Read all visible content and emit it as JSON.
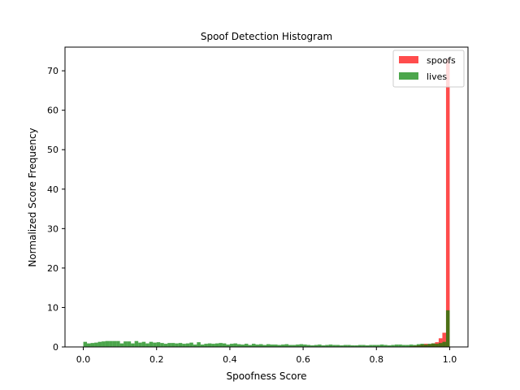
{
  "chart_data": {
    "type": "bar",
    "title": "Spoof Detection Histogram",
    "xlabel": "Spoofness Score",
    "ylabel": "Normalized Score Frequency",
    "xlim": [
      -0.05,
      1.05
    ],
    "ylim": [
      0,
      76
    ],
    "xticks": [
      "0.0",
      "0.2",
      "0.4",
      "0.6",
      "0.8",
      "1.0"
    ],
    "yticks": [
      "0",
      "10",
      "20",
      "30",
      "40",
      "50",
      "60",
      "70"
    ],
    "grid": false,
    "legend_position": "top-right",
    "bin_width": 0.01,
    "series": [
      {
        "name": "spoofs",
        "color": "#ff0000",
        "alpha": 0.7,
        "bins": [
          {
            "x": 0.89,
            "y": 0.2
          },
          {
            "x": 0.9,
            "y": 0.3
          },
          {
            "x": 0.91,
            "y": 0.4
          },
          {
            "x": 0.92,
            "y": 0.6
          },
          {
            "x": 0.93,
            "y": 0.8
          },
          {
            "x": 0.94,
            "y": 0.7
          },
          {
            "x": 0.95,
            "y": 0.9
          },
          {
            "x": 0.96,
            "y": 1.2
          },
          {
            "x": 0.97,
            "y": 2.2
          },
          {
            "x": 0.98,
            "y": 3.6
          },
          {
            "x": 0.99,
            "y": 73.0
          }
        ]
      },
      {
        "name": "lives",
        "color": "#008000",
        "alpha": 0.7,
        "bins": [
          {
            "x": 0.0,
            "y": 1.3
          },
          {
            "x": 0.01,
            "y": 0.9
          },
          {
            "x": 0.02,
            "y": 1.0
          },
          {
            "x": 0.03,
            "y": 1.1
          },
          {
            "x": 0.04,
            "y": 1.3
          },
          {
            "x": 0.05,
            "y": 1.4
          },
          {
            "x": 0.06,
            "y": 1.5
          },
          {
            "x": 0.07,
            "y": 1.5
          },
          {
            "x": 0.08,
            "y": 1.5
          },
          {
            "x": 0.09,
            "y": 1.5
          },
          {
            "x": 0.1,
            "y": 0.9
          },
          {
            "x": 0.11,
            "y": 1.4
          },
          {
            "x": 0.12,
            "y": 1.4
          },
          {
            "x": 0.13,
            "y": 0.9
          },
          {
            "x": 0.14,
            "y": 1.5
          },
          {
            "x": 0.15,
            "y": 1.1
          },
          {
            "x": 0.16,
            "y": 1.3
          },
          {
            "x": 0.17,
            "y": 0.9
          },
          {
            "x": 0.18,
            "y": 1.3
          },
          {
            "x": 0.19,
            "y": 1.1
          },
          {
            "x": 0.2,
            "y": 1.2
          },
          {
            "x": 0.21,
            "y": 1.0
          },
          {
            "x": 0.22,
            "y": 0.8
          },
          {
            "x": 0.23,
            "y": 1.0
          },
          {
            "x": 0.24,
            "y": 1.0
          },
          {
            "x": 0.25,
            "y": 0.9
          },
          {
            "x": 0.26,
            "y": 1.0
          },
          {
            "x": 0.27,
            "y": 0.8
          },
          {
            "x": 0.28,
            "y": 0.9
          },
          {
            "x": 0.29,
            "y": 1.1
          },
          {
            "x": 0.3,
            "y": 0.6
          },
          {
            "x": 0.31,
            "y": 1.2
          },
          {
            "x": 0.32,
            "y": 0.6
          },
          {
            "x": 0.33,
            "y": 0.8
          },
          {
            "x": 0.34,
            "y": 0.9
          },
          {
            "x": 0.35,
            "y": 0.8
          },
          {
            "x": 0.36,
            "y": 0.9
          },
          {
            "x": 0.37,
            "y": 1.0
          },
          {
            "x": 0.38,
            "y": 0.9
          },
          {
            "x": 0.39,
            "y": 0.6
          },
          {
            "x": 0.4,
            "y": 0.8
          },
          {
            "x": 0.41,
            "y": 0.9
          },
          {
            "x": 0.42,
            "y": 0.7
          },
          {
            "x": 0.43,
            "y": 0.6
          },
          {
            "x": 0.44,
            "y": 0.8
          },
          {
            "x": 0.45,
            "y": 0.5
          },
          {
            "x": 0.46,
            "y": 0.8
          },
          {
            "x": 0.47,
            "y": 0.6
          },
          {
            "x": 0.48,
            "y": 0.7
          },
          {
            "x": 0.49,
            "y": 0.5
          },
          {
            "x": 0.5,
            "y": 0.7
          },
          {
            "x": 0.51,
            "y": 0.6
          },
          {
            "x": 0.52,
            "y": 0.6
          },
          {
            "x": 0.53,
            "y": 0.5
          },
          {
            "x": 0.54,
            "y": 0.6
          },
          {
            "x": 0.55,
            "y": 0.7
          },
          {
            "x": 0.56,
            "y": 0.5
          },
          {
            "x": 0.57,
            "y": 0.5
          },
          {
            "x": 0.58,
            "y": 0.6
          },
          {
            "x": 0.59,
            "y": 0.7
          },
          {
            "x": 0.6,
            "y": 0.6
          },
          {
            "x": 0.61,
            "y": 0.5
          },
          {
            "x": 0.62,
            "y": 0.4
          },
          {
            "x": 0.63,
            "y": 0.5
          },
          {
            "x": 0.64,
            "y": 0.6
          },
          {
            "x": 0.65,
            "y": 0.4
          },
          {
            "x": 0.66,
            "y": 0.5
          },
          {
            "x": 0.67,
            "y": 0.6
          },
          {
            "x": 0.68,
            "y": 0.5
          },
          {
            "x": 0.69,
            "y": 0.5
          },
          {
            "x": 0.7,
            "y": 0.4
          },
          {
            "x": 0.71,
            "y": 0.5
          },
          {
            "x": 0.72,
            "y": 0.5
          },
          {
            "x": 0.73,
            "y": 0.4
          },
          {
            "x": 0.74,
            "y": 0.4
          },
          {
            "x": 0.75,
            "y": 0.5
          },
          {
            "x": 0.76,
            "y": 0.5
          },
          {
            "x": 0.77,
            "y": 0.4
          },
          {
            "x": 0.78,
            "y": 0.5
          },
          {
            "x": 0.79,
            "y": 0.5
          },
          {
            "x": 0.8,
            "y": 0.5
          },
          {
            "x": 0.81,
            "y": 0.6
          },
          {
            "x": 0.82,
            "y": 0.5
          },
          {
            "x": 0.83,
            "y": 0.4
          },
          {
            "x": 0.84,
            "y": 0.5
          },
          {
            "x": 0.85,
            "y": 0.6
          },
          {
            "x": 0.86,
            "y": 0.6
          },
          {
            "x": 0.87,
            "y": 0.5
          },
          {
            "x": 0.88,
            "y": 0.5
          },
          {
            "x": 0.89,
            "y": 0.6
          },
          {
            "x": 0.9,
            "y": 0.5
          },
          {
            "x": 0.91,
            "y": 0.7
          },
          {
            "x": 0.92,
            "y": 0.8
          },
          {
            "x": 0.93,
            "y": 0.6
          },
          {
            "x": 0.94,
            "y": 0.8
          },
          {
            "x": 0.95,
            "y": 0.9
          },
          {
            "x": 0.96,
            "y": 0.8
          },
          {
            "x": 0.97,
            "y": 1.0
          },
          {
            "x": 0.98,
            "y": 1.3
          },
          {
            "x": 0.99,
            "y": 9.3
          }
        ]
      }
    ]
  }
}
